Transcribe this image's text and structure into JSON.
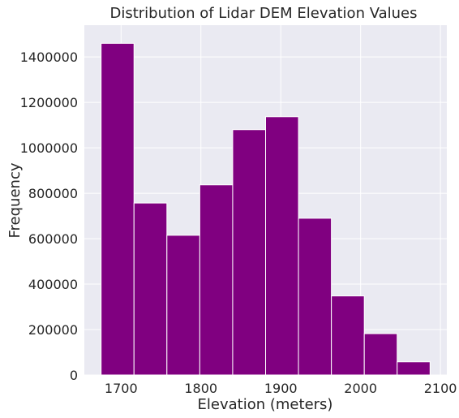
{
  "chart_data": {
    "type": "bar",
    "title": "Distribution of Lidar DEM Elevation Values",
    "xlabel": "Elevation (meters)",
    "ylabel": "Frequency",
    "bin_edges": [
      1675.0,
      1716.2,
      1757.4,
      1798.6,
      1839.8,
      1881.0,
      1922.2,
      1963.4,
      2004.6,
      2045.8,
      2087.0
    ],
    "values": [
      1460000,
      757000,
      615000,
      837000,
      1080000,
      1137000,
      690000,
      348000,
      182000,
      58000
    ],
    "xlim": [
      1654,
      2108
    ],
    "ylim": [
      0,
      1540000
    ],
    "xticks": [
      1700,
      1800,
      1900,
      2000,
      2100
    ],
    "yticks": [
      0,
      200000,
      400000,
      600000,
      800000,
      1000000,
      1200000,
      1400000
    ],
    "grid": true,
    "colors": {
      "bar": "#800080",
      "bar_edge": "#ffffff",
      "plot_bg": "#eaeaf2",
      "grid": "#ffffff"
    }
  }
}
